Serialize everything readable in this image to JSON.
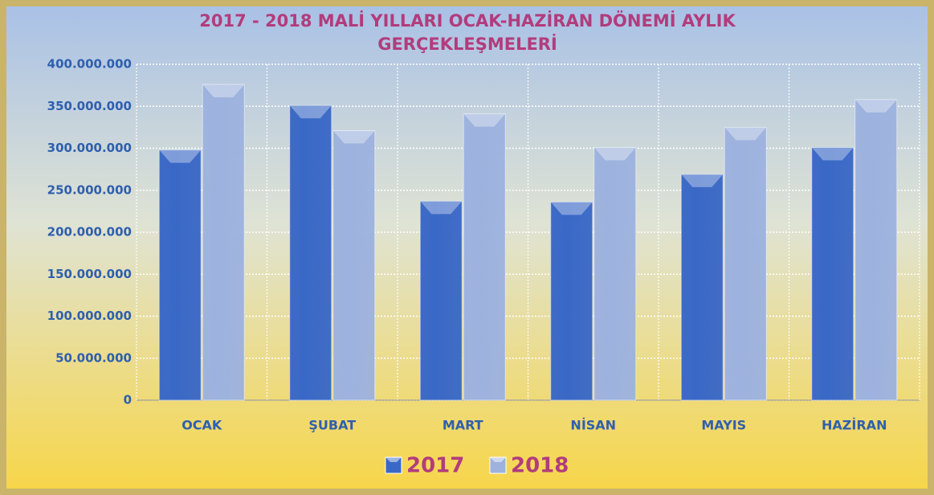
{
  "chart_data": {
    "type": "bar",
    "title": "2017 - 2018  MALİ YILLARI OCAK-HAZİRAN DÖNEMİ AYLIK GERÇEKLEŞMELERİ",
    "categories": [
      "OCAK",
      "ŞUBAT",
      "MART",
      "NİSAN",
      "MAYIS",
      "HAZİRAN"
    ],
    "series": [
      {
        "name": "2017",
        "color": "#3a68c6",
        "values": [
          298000000,
          351000000,
          237000000,
          236000000,
          269000000,
          301000000
        ]
      },
      {
        "name": "2018",
        "color": "#9db2de",
        "values": [
          376000000,
          321000000,
          341000000,
          301000000,
          325000000,
          358000000
        ]
      }
    ],
    "ylim": [
      0,
      400000000
    ],
    "yticks": [
      0,
      {
        "value": 50000000,
        "label": "50.000.000"
      },
      {
        "value": 100000000,
        "label": "100.000.000"
      },
      {
        "value": 150000000,
        "label": "150.000.000"
      },
      {
        "value": 200000000,
        "label": "200.000.000"
      },
      {
        "value": 250000000,
        "label": "250.000.000"
      },
      {
        "value": 300000000,
        "label": "300.000.000"
      },
      {
        "value": 350000000,
        "label": "350.000.000"
      },
      {
        "value": 400000000,
        "label": "400.000.000"
      }
    ],
    "grid": true,
    "legend": "bottom"
  }
}
